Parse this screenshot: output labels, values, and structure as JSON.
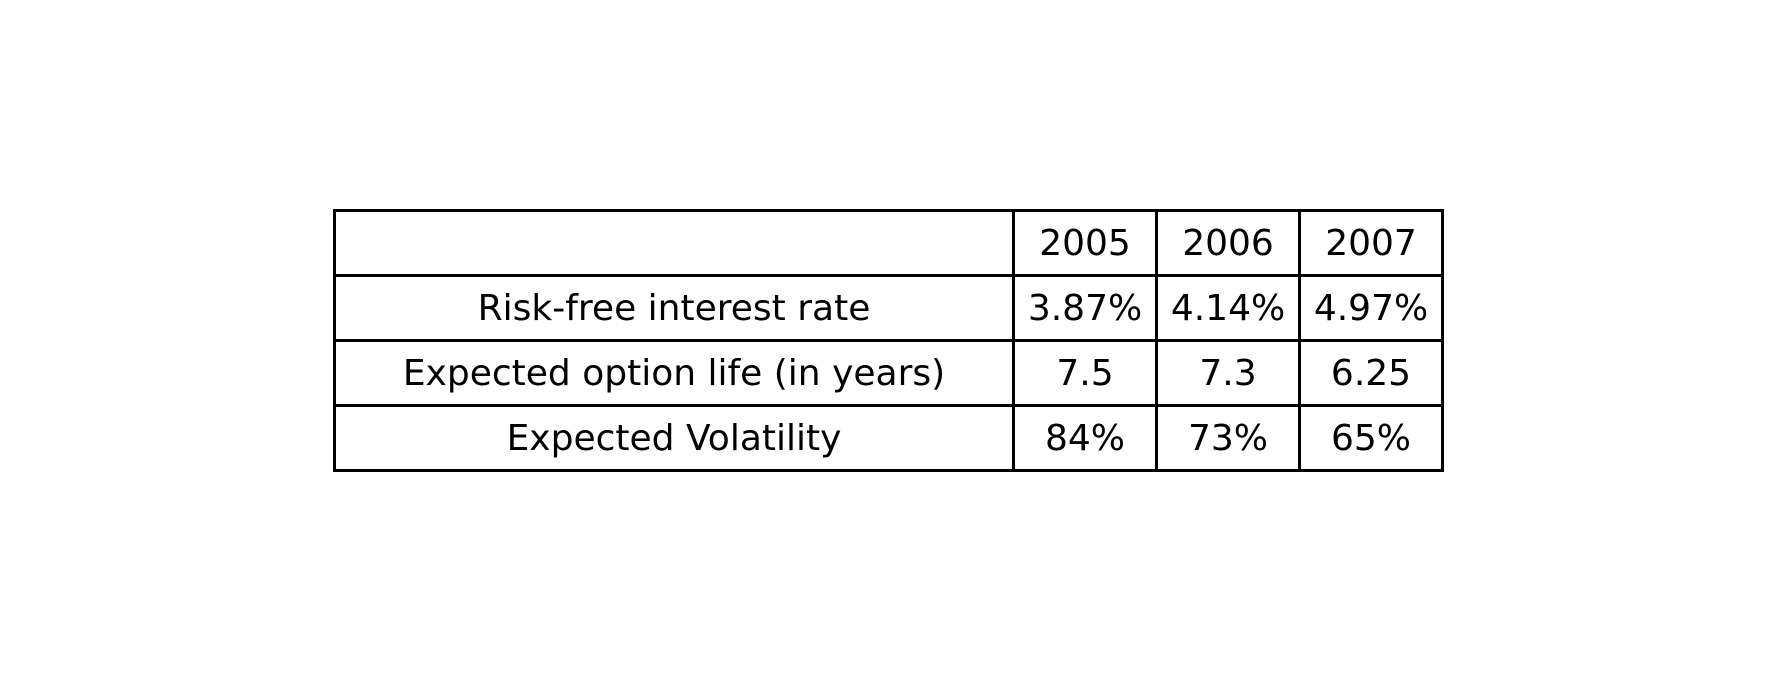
{
  "chart_data": {
    "type": "table",
    "columns": [
      "",
      "2005",
      "2006",
      "2007"
    ],
    "rows": [
      {
        "label": "Risk-free interest rate",
        "values": [
          "3.87%",
          "4.14%",
          "4.97%"
        ]
      },
      {
        "label": "Expected option life (in years)",
        "values": [
          "7.5",
          "7.3",
          "6.25"
        ]
      },
      {
        "label": "Expected Volatility",
        "values": [
          "84%",
          "73%",
          "65%"
        ]
      }
    ]
  }
}
